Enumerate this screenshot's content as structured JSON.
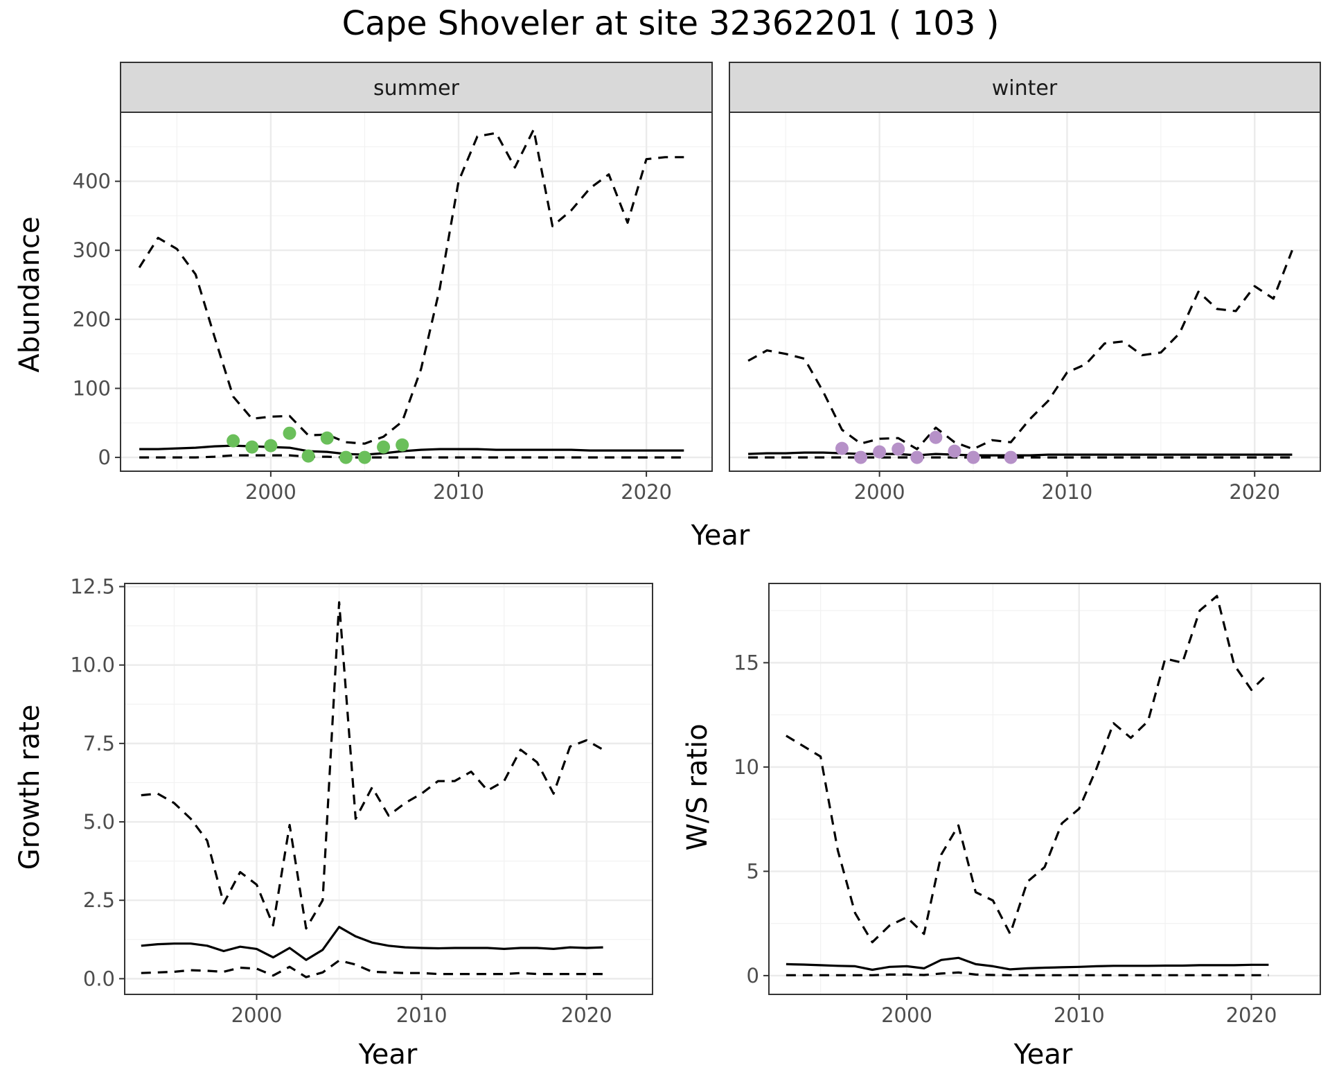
{
  "title": "Cape Shoveler at site 32362201 ( 103 )",
  "colors": {
    "summer_points": "#6abf5a",
    "winter_points": "#b691c8",
    "lines": "#000000"
  },
  "chart_data": [
    {
      "id": "summer",
      "type": "line",
      "facet_label": "summer",
      "xlabel": "Year",
      "ylabel": "Abundance",
      "xlim": [
        1992,
        2023.5
      ],
      "ylim": [
        -20,
        500
      ],
      "xticks": [
        2000,
        2010,
        2020
      ],
      "yticks": [
        0,
        100,
        200,
        300,
        400
      ],
      "grid": true,
      "series": [
        {
          "role": "upper",
          "style": "dashed",
          "x": [
            1993,
            1994,
            1995,
            1996,
            1997,
            1998,
            1999,
            2000,
            2001,
            2002,
            2003,
            2004,
            2005,
            2006,
            2007,
            2008,
            2009,
            2010,
            2011,
            2012,
            2013,
            2014,
            2015,
            2016,
            2017,
            2018,
            2019,
            2020,
            2021,
            2022
          ],
          "y": [
            275,
            318,
            302,
            265,
            175,
            88,
            56,
            59,
            60,
            32,
            33,
            22,
            20,
            30,
            52,
            128,
            245,
            400,
            465,
            470,
            420,
            475,
            335,
            358,
            390,
            410,
            340,
            432,
            435,
            435
          ]
        },
        {
          "role": "mean",
          "style": "solid",
          "x": [
            1993,
            1994,
            1995,
            1996,
            1997,
            1998,
            1999,
            2000,
            2001,
            2002,
            2003,
            2004,
            2005,
            2006,
            2007,
            2008,
            2009,
            2010,
            2011,
            2012,
            2013,
            2014,
            2015,
            2016,
            2017,
            2018,
            2019,
            2020,
            2021,
            2022
          ],
          "y": [
            12,
            12,
            13,
            14,
            16,
            17,
            16,
            15,
            14,
            9,
            8,
            5,
            4,
            6,
            9,
            11,
            12,
            12,
            12,
            11,
            11,
            11,
            11,
            11,
            10,
            10,
            10,
            10,
            10,
            10
          ]
        },
        {
          "role": "lower",
          "style": "dashed",
          "x": [
            1993,
            1994,
            1995,
            1996,
            1997,
            1998,
            1999,
            2000,
            2001,
            2002,
            2003,
            2004,
            2005,
            2006,
            2007,
            2008,
            2009,
            2010,
            2011,
            2012,
            2013,
            2014,
            2015,
            2016,
            2017,
            2018,
            2019,
            2020,
            2021,
            2022
          ],
          "y": [
            0,
            0,
            0,
            0,
            1,
            3,
            3,
            3,
            3,
            1,
            1,
            0,
            0,
            0,
            0,
            0,
            0,
            0,
            0,
            0,
            0,
            0,
            0,
            0,
            0,
            0,
            0,
            0,
            0,
            0
          ]
        },
        {
          "role": "observed",
          "style": "points",
          "x": [
            1998,
            1999,
            2000,
            2001,
            2002,
            2003,
            2004,
            2005,
            2006,
            2007
          ],
          "y": [
            24,
            15,
            17,
            35,
            2,
            28,
            0,
            0,
            15,
            18
          ]
        }
      ]
    },
    {
      "id": "winter",
      "type": "line",
      "facet_label": "winter",
      "xlabel": "Year",
      "ylabel": "Abundance",
      "xlim": [
        1992,
        2023.5
      ],
      "ylim": [
        -20,
        500
      ],
      "xticks": [
        2000,
        2010,
        2020
      ],
      "yticks": [
        0,
        100,
        200,
        300,
        400
      ],
      "grid": true,
      "series": [
        {
          "role": "upper",
          "style": "dashed",
          "x": [
            1993,
            1994,
            1995,
            1996,
            1997,
            1998,
            1999,
            2000,
            2001,
            2002,
            2003,
            2004,
            2005,
            2006,
            2007,
            2008,
            2009,
            2010,
            2011,
            2012,
            2013,
            2014,
            2015,
            2016,
            2017,
            2018,
            2019,
            2020,
            2021,
            2022
          ],
          "y": [
            140,
            155,
            150,
            143,
            95,
            40,
            20,
            27,
            28,
            12,
            43,
            22,
            12,
            25,
            22,
            55,
            82,
            123,
            135,
            165,
            168,
            148,
            152,
            180,
            240,
            215,
            212,
            248,
            230,
            300
          ]
        },
        {
          "role": "mean",
          "style": "solid",
          "x": [
            1993,
            1994,
            1995,
            1996,
            1997,
            1998,
            1999,
            2000,
            2001,
            2002,
            2003,
            2004,
            2005,
            2006,
            2007,
            2008,
            2009,
            2010,
            2011,
            2012,
            2013,
            2014,
            2015,
            2016,
            2017,
            2018,
            2019,
            2020,
            2021,
            2022
          ],
          "y": [
            5,
            6,
            6,
            7,
            7,
            6,
            5,
            5,
            5,
            3,
            5,
            4,
            3,
            3,
            3,
            3,
            4,
            4,
            4,
            4,
            4,
            4,
            4,
            4,
            4,
            4,
            4,
            4,
            4,
            4
          ]
        },
        {
          "role": "lower",
          "style": "dashed",
          "x": [
            1993,
            1994,
            1995,
            1996,
            1997,
            1998,
            1999,
            2000,
            2001,
            2002,
            2003,
            2004,
            2005,
            2006,
            2007,
            2008,
            2009,
            2010,
            2011,
            2012,
            2013,
            2014,
            2015,
            2016,
            2017,
            2018,
            2019,
            2020,
            2021,
            2022
          ],
          "y": [
            0,
            0,
            0,
            0,
            0,
            0,
            0,
            0,
            0,
            0,
            0,
            0,
            0,
            0,
            0,
            0,
            0,
            0,
            0,
            0,
            0,
            0,
            0,
            0,
            0,
            0,
            0,
            0,
            0,
            0
          ]
        },
        {
          "role": "observed",
          "style": "points",
          "x": [
            1998,
            1999,
            2000,
            2001,
            2002,
            2003,
            2004,
            2005,
            2007
          ],
          "y": [
            13,
            0,
            8,
            12,
            0,
            29,
            9,
            0,
            0
          ]
        }
      ]
    },
    {
      "id": "growth",
      "type": "line",
      "xlabel": "Year",
      "ylabel": "Growth rate",
      "xlim": [
        1992,
        2024
      ],
      "ylim": [
        -0.5,
        12.6
      ],
      "xticks": [
        2000,
        2010,
        2020
      ],
      "yticks": [
        0.0,
        2.5,
        5.0,
        7.5,
        10.0,
        12.5
      ],
      "ytick_labels": [
        "0.0",
        "2.5",
        "5.0",
        "7.5",
        "10.0",
        "12.5"
      ],
      "grid": true,
      "series": [
        {
          "role": "upper",
          "style": "dashed",
          "x": [
            1993,
            1994,
            1995,
            1996,
            1997,
            1998,
            1999,
            2000,
            2001,
            2002,
            2003,
            2004,
            2005,
            2006,
            2007,
            2008,
            2009,
            2010,
            2011,
            2012,
            2013,
            2014,
            2015,
            2016,
            2017,
            2018,
            2019,
            2020,
            2021
          ],
          "y": [
            5.85,
            5.9,
            5.6,
            5.1,
            4.4,
            2.4,
            3.4,
            3.0,
            1.7,
            4.9,
            1.6,
            2.5,
            12.0,
            5.1,
            6.1,
            5.2,
            5.6,
            5.9,
            6.3,
            6.3,
            6.6,
            6.0,
            6.3,
            7.3,
            6.9,
            5.9,
            7.4,
            7.6,
            7.3
          ]
        },
        {
          "role": "mean",
          "style": "solid",
          "x": [
            1993,
            1994,
            1995,
            1996,
            1997,
            1998,
            1999,
            2000,
            2001,
            2002,
            2003,
            2004,
            2005,
            2006,
            2007,
            2008,
            2009,
            2010,
            2011,
            2012,
            2013,
            2014,
            2015,
            2016,
            2017,
            2018,
            2019,
            2020,
            2021
          ],
          "y": [
            1.05,
            1.1,
            1.12,
            1.12,
            1.05,
            0.88,
            1.02,
            0.95,
            0.68,
            0.98,
            0.6,
            0.92,
            1.65,
            1.35,
            1.15,
            1.05,
            1.0,
            0.98,
            0.97,
            0.98,
            0.98,
            0.98,
            0.95,
            0.98,
            0.98,
            0.95,
            1.0,
            0.98,
            1.0
          ]
        },
        {
          "role": "lower",
          "style": "dashed",
          "x": [
            1993,
            1994,
            1995,
            1996,
            1997,
            1998,
            1999,
            2000,
            2001,
            2002,
            2003,
            2004,
            2005,
            2006,
            2007,
            2008,
            2009,
            2010,
            2011,
            2012,
            2013,
            2014,
            2015,
            2016,
            2017,
            2018,
            2019,
            2020,
            2021
          ],
          "y": [
            0.18,
            0.2,
            0.22,
            0.27,
            0.25,
            0.22,
            0.35,
            0.32,
            0.1,
            0.38,
            0.05,
            0.2,
            0.58,
            0.45,
            0.22,
            0.2,
            0.18,
            0.18,
            0.15,
            0.15,
            0.15,
            0.15,
            0.15,
            0.18,
            0.15,
            0.15,
            0.15,
            0.15,
            0.15
          ]
        }
      ]
    },
    {
      "id": "ratio",
      "type": "line",
      "xlabel": "Year",
      "ylabel": "W/S ratio",
      "xlim": [
        1992,
        2024
      ],
      "ylim": [
        -0.9,
        18.8
      ],
      "xticks": [
        2000,
        2010,
        2020
      ],
      "yticks": [
        0,
        5,
        10,
        15
      ],
      "ytick_labels": [
        "0",
        "5",
        "10",
        "15"
      ],
      "grid": true,
      "series": [
        {
          "role": "upper",
          "style": "dashed",
          "x": [
            1993,
            1994,
            1995,
            1996,
            1997,
            1998,
            1999,
            2000,
            2001,
            2002,
            2003,
            2004,
            2005,
            2006,
            2007,
            2008,
            2009,
            2010,
            2011,
            2012,
            2013,
            2014,
            2015,
            2016,
            2017,
            2018,
            2019,
            2020,
            2021
          ],
          "y": [
            11.5,
            11.0,
            10.5,
            6.0,
            3.0,
            1.6,
            2.4,
            2.8,
            2.0,
            5.8,
            7.2,
            4.0,
            3.6,
            2.0,
            4.5,
            5.2,
            7.3,
            8.0,
            9.9,
            12.1,
            11.4,
            12.2,
            15.2,
            15.0,
            17.5,
            18.2,
            14.9,
            13.7,
            14.5
          ]
        },
        {
          "role": "mean",
          "style": "solid",
          "x": [
            1993,
            1994,
            1995,
            1996,
            1997,
            1998,
            1999,
            2000,
            2001,
            2002,
            2003,
            2004,
            2005,
            2006,
            2007,
            2008,
            2009,
            2010,
            2011,
            2012,
            2013,
            2014,
            2015,
            2016,
            2017,
            2018,
            2019,
            2020,
            2021
          ],
          "y": [
            0.55,
            0.53,
            0.5,
            0.47,
            0.45,
            0.28,
            0.42,
            0.45,
            0.35,
            0.75,
            0.85,
            0.55,
            0.45,
            0.3,
            0.35,
            0.38,
            0.4,
            0.42,
            0.45,
            0.47,
            0.47,
            0.47,
            0.48,
            0.48,
            0.5,
            0.5,
            0.5,
            0.52,
            0.52
          ]
        },
        {
          "role": "lower",
          "style": "dashed",
          "x": [
            1993,
            1994,
            1995,
            1996,
            1997,
            1998,
            1999,
            2000,
            2001,
            2002,
            2003,
            2004,
            2005,
            2006,
            2007,
            2008,
            2009,
            2010,
            2011,
            2012,
            2013,
            2014,
            2015,
            2016,
            2017,
            2018,
            2019,
            2020,
            2021
          ],
          "y": [
            0.02,
            0.02,
            0.02,
            0.02,
            0.02,
            0.02,
            0.05,
            0.05,
            0.03,
            0.1,
            0.15,
            0.05,
            0.03,
            0.02,
            0.02,
            0.02,
            0.02,
            0.02,
            0.02,
            0.02,
            0.02,
            0.02,
            0.02,
            0.02,
            0.02,
            0.02,
            0.02,
            0.02,
            0.02
          ]
        }
      ]
    }
  ]
}
